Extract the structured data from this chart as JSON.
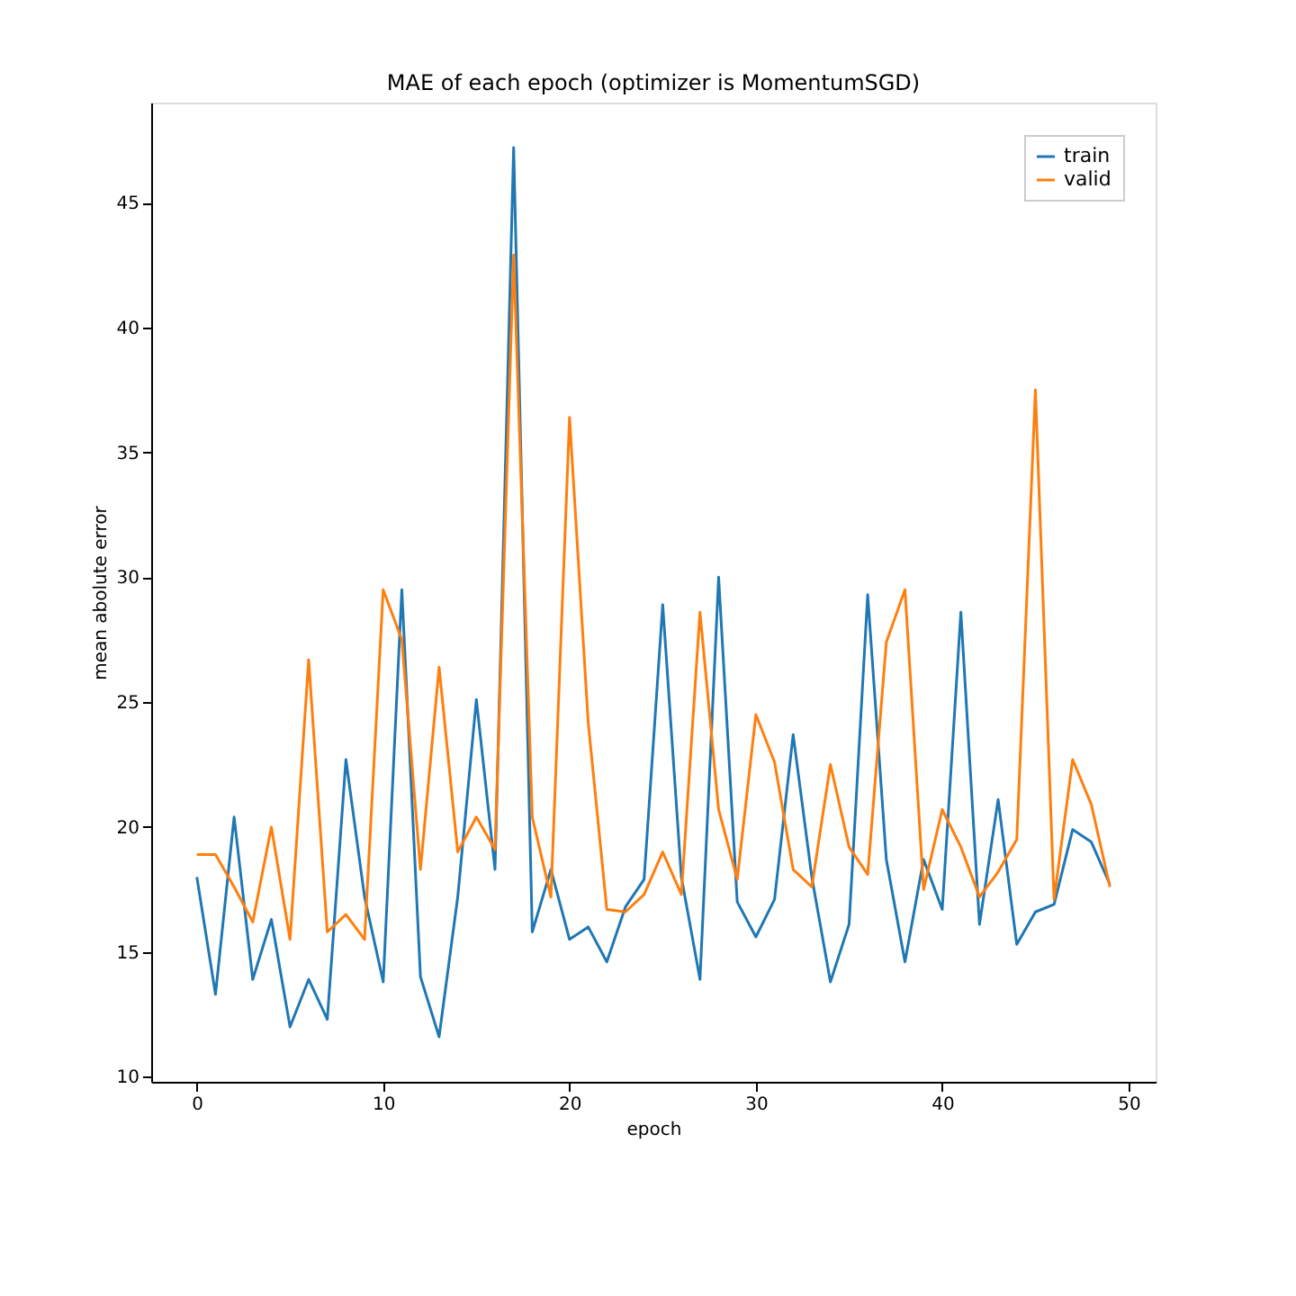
{
  "chart_data": {
    "type": "line",
    "title": "MAE of each epoch (optimizer is MomentumSGD)",
    "xlabel": "epoch",
    "ylabel": "mean abolute error",
    "x": [
      0,
      1,
      2,
      3,
      4,
      5,
      6,
      7,
      8,
      9,
      10,
      11,
      12,
      13,
      14,
      15,
      16,
      17,
      18,
      19,
      20,
      21,
      22,
      23,
      24,
      25,
      26,
      27,
      28,
      29,
      30,
      31,
      32,
      33,
      34,
      35,
      36,
      37,
      38,
      39,
      40,
      41,
      42,
      43,
      44,
      45,
      46,
      47,
      48,
      49
    ],
    "series": [
      {
        "name": "train",
        "color": "#1f77b4",
        "values": [
          18.0,
          13.3,
          20.4,
          13.9,
          16.3,
          12.0,
          13.9,
          12.3,
          22.7,
          17.2,
          13.8,
          29.5,
          14.0,
          11.6,
          17.2,
          25.1,
          18.3,
          47.2,
          15.8,
          18.3,
          15.5,
          16.0,
          14.6,
          16.8,
          17.9,
          28.9,
          18.0,
          13.9,
          30.0,
          17.0,
          15.6,
          17.1,
          23.7,
          18.0,
          13.8,
          16.1,
          29.3,
          18.7,
          14.6,
          18.7,
          16.7,
          28.6,
          16.1,
          21.1,
          15.3,
          16.6,
          16.9,
          19.9,
          19.4,
          17.7
        ]
      },
      {
        "name": "valid",
        "color": "#ff7f0e",
        "values": [
          18.9,
          18.9,
          17.6,
          16.2,
          20.0,
          15.5,
          26.7,
          15.8,
          16.5,
          15.5,
          29.5,
          27.5,
          18.3,
          26.4,
          19.0,
          20.4,
          19.1,
          42.9,
          20.4,
          17.2,
          36.4,
          24.2,
          16.7,
          16.6,
          17.3,
          19.0,
          17.3,
          28.6,
          20.7,
          17.9,
          24.5,
          22.6,
          18.3,
          17.6,
          22.5,
          19.2,
          18.1,
          27.4,
          29.5,
          17.5,
          20.7,
          19.2,
          17.2,
          18.2,
          19.5,
          37.5,
          17.1,
          22.7,
          20.9,
          17.6
        ]
      }
    ],
    "xlim": [
      -2.45,
      51.45
    ],
    "xticks": [
      0,
      10,
      20,
      30,
      40,
      50
    ],
    "ylim": [
      9.8,
      49.0
    ],
    "yticks": [
      10,
      15,
      20,
      25,
      30,
      35,
      40,
      45
    ],
    "grid": false,
    "legend": "top right",
    "marker": "none",
    "line_style": "solid"
  }
}
